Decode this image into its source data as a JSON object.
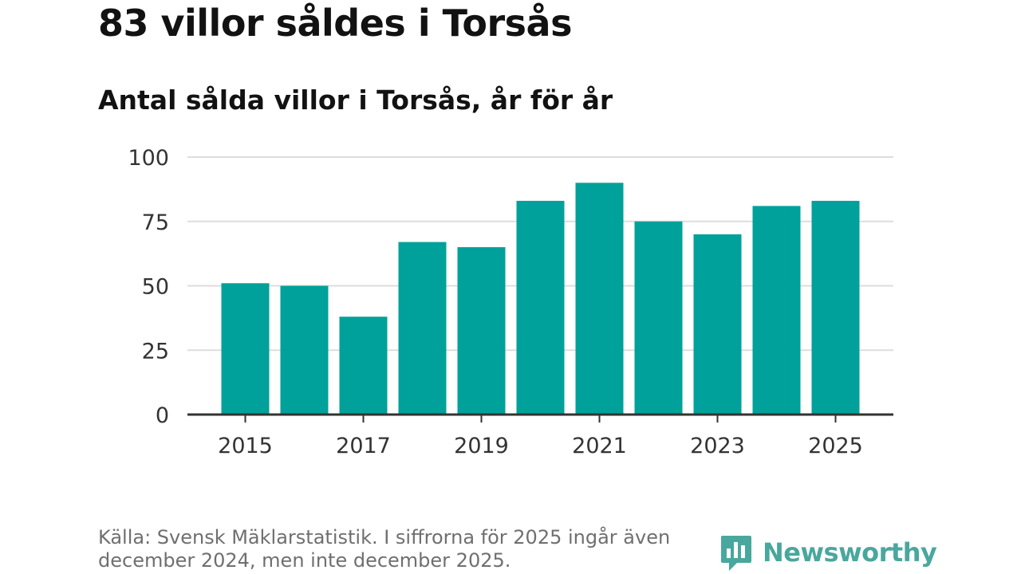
{
  "title": "83 villor såldes i Torsås",
  "subtitle": "Antal sålda villor i Torsås, år för år",
  "source": "Källa: Svensk Mäklarstatistik. I siffrorna för 2025 ingår även december 2024, men inte december 2025.",
  "brand": {
    "name": "Newsworthy",
    "icon": "newsworthy-logo-icon",
    "color": "#4aa79d"
  },
  "chart_data": {
    "type": "bar",
    "title": "Antal sålda villor i Torsås, år för år",
    "xlabel": "",
    "ylabel": "",
    "categories": [
      "2015",
      "2016",
      "2017",
      "2018",
      "2019",
      "2020",
      "2021",
      "2022",
      "2023",
      "2024",
      "2025"
    ],
    "values": [
      51,
      50,
      38,
      67,
      65,
      83,
      90,
      75,
      70,
      81,
      83
    ],
    "ylim": [
      0,
      100
    ],
    "yticks": [
      0,
      25,
      50,
      75,
      100
    ],
    "xtick_labels": [
      "2015",
      "2017",
      "2019",
      "2021",
      "2023",
      "2025"
    ],
    "grid": true,
    "bar_color": "#00a19a",
    "grid_color": "#dddddd",
    "axis_color": "#333333"
  }
}
